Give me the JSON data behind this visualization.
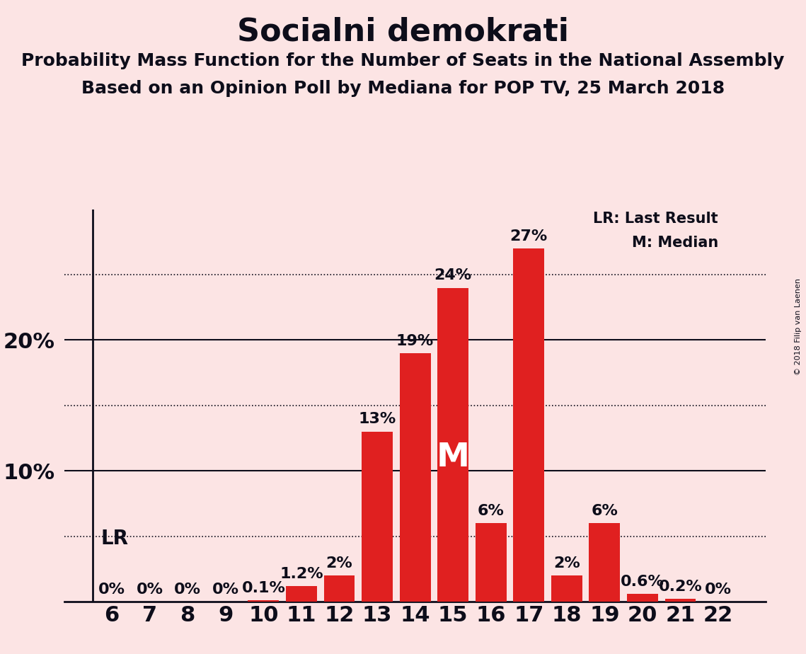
{
  "title": "Socialni demokrati",
  "subtitle1": "Probability Mass Function for the Number of Seats in the National Assembly",
  "subtitle2": "Based on an Opinion Poll by Mediana for POP TV, 25 March 2018",
  "copyright": "© 2018 Filip van Laenen",
  "background_color": "#fce4e4",
  "bar_color": "#e02020",
  "categories": [
    6,
    7,
    8,
    9,
    10,
    11,
    12,
    13,
    14,
    15,
    16,
    17,
    18,
    19,
    20,
    21,
    22
  ],
  "values": [
    0.0,
    0.0,
    0.0,
    0.0,
    0.1,
    1.2,
    2.0,
    13.0,
    19.0,
    24.0,
    6.0,
    27.0,
    2.0,
    6.0,
    0.6,
    0.2,
    0.0
  ],
  "labels": [
    "0%",
    "0%",
    "0%",
    "0%",
    "0.1%",
    "1.2%",
    "2%",
    "13%",
    "19%",
    "24%",
    "6%",
    "27%",
    "2%",
    "6%",
    "0.6%",
    "0.2%",
    "0%"
  ],
  "ylim": [
    0,
    30
  ],
  "yticks": [
    10,
    20
  ],
  "ytick_labels": [
    "10%",
    "20%"
  ],
  "major_gridlines": [
    10,
    20
  ],
  "dotted_gridlines": [
    5,
    15,
    25
  ],
  "median_seat": 15,
  "lr_seat": 6,
  "legend_lr": "LR: Last Result",
  "legend_m": "M: Median",
  "title_fontsize": 32,
  "subtitle_fontsize": 18,
  "axis_label_fontsize": 22,
  "bar_label_fontsize": 16,
  "text_color": "#0d0d1a"
}
